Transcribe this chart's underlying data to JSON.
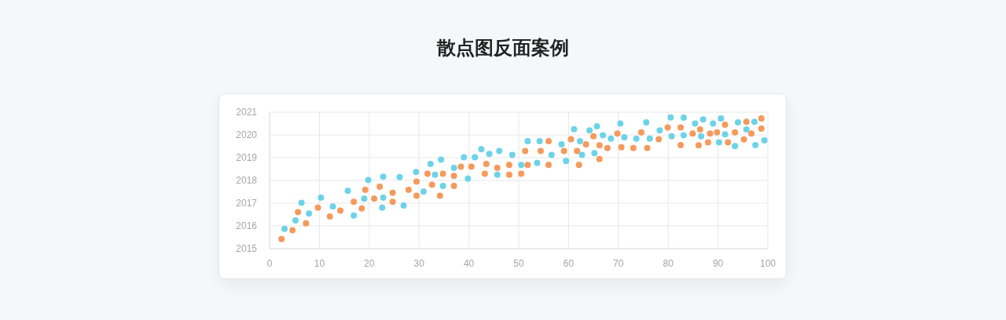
{
  "chart_data": {
    "type": "scatter",
    "title": "散点图反面案例",
    "xlim": [
      0,
      100
    ],
    "xticks": [
      0,
      10,
      20,
      30,
      40,
      50,
      60,
      70,
      80,
      90,
      100
    ],
    "ylim": [
      2015,
      2021
    ],
    "yticks": [
      2015,
      2016,
      2017,
      2018,
      2019,
      2020,
      2021
    ],
    "grid": true,
    "legend": false,
    "marker": "circle",
    "series": [
      {
        "color": "#6dd3e8",
        "x": [
          3.0,
          5.2,
          6.4,
          7.9,
          10.3,
          12.7,
          15.7,
          16.9,
          19.0,
          19.8,
          22.8,
          22.8,
          22.6,
          26.1,
          26.9,
          29.4,
          30.9,
          32.3,
          33.2,
          34.4,
          34.8,
          37.0,
          39.0,
          39.8,
          41.2,
          42.5,
          44.1,
          45.7,
          46.1,
          48.7,
          50.5,
          51.8,
          53.7,
          54.2,
          56.6,
          58.6,
          59.5,
          61.1,
          62.3,
          62.7,
          64.2,
          65.7,
          65.2,
          66.9,
          68.5,
          70.4,
          71.2,
          73.6,
          75.6,
          76.3,
          78.3,
          80.5,
          80.7,
          83.1,
          83.1,
          85.4,
          86.6,
          87.0,
          89.0,
          90.2,
          90.6,
          91.4,
          93.4,
          94.0,
          95.7,
          97.3,
          97.5,
          99.3
        ],
        "values": [
          2015.87,
          2016.24,
          2017.02,
          2016.54,
          2017.24,
          2016.85,
          2017.54,
          2016.46,
          2017.2,
          2018.02,
          2018.16,
          2017.24,
          2016.8,
          2018.15,
          2016.9,
          2018.37,
          2017.51,
          2018.72,
          2018.25,
          2018.91,
          2017.76,
          2018.55,
          2019.02,
          2018.08,
          2019.02,
          2019.37,
          2019.16,
          2018.25,
          2019.29,
          2019.12,
          2018.68,
          2019.72,
          2018.77,
          2019.72,
          2019.12,
          2019.59,
          2018.85,
          2020.25,
          2019.72,
          2019.12,
          2020.2,
          2020.38,
          2019.2,
          2019.98,
          2019.84,
          2020.5,
          2019.9,
          2019.84,
          2020.55,
          2019.84,
          2020.2,
          2020.77,
          2019.94,
          2020.76,
          2019.98,
          2020.5,
          2019.94,
          2020.68,
          2020.5,
          2019.67,
          2020.72,
          2020.03,
          2019.51,
          2020.55,
          2020.24,
          2020.58,
          2019.55,
          2019.76
        ]
      },
      {
        "color": "#f59a5c",
        "x": [
          2.4,
          4.6,
          5.7,
          7.3,
          9.7,
          12.1,
          14.2,
          16.9,
          18.5,
          19.2,
          21.0,
          22.1,
          24.7,
          24.7,
          27.9,
          29.5,
          29.5,
          31.7,
          32.6,
          34.2,
          34.8,
          37.0,
          37.0,
          38.4,
          40.5,
          43.2,
          43.5,
          45.7,
          48.1,
          48.1,
          50.5,
          51.3,
          51.8,
          54.4,
          56.0,
          56.0,
          59.1,
          60.5,
          61.7,
          62.1,
          63.5,
          65.0,
          66.2,
          66.2,
          67.8,
          69.8,
          70.6,
          73.0,
          74.6,
          75.8,
          78.1,
          79.9,
          82.5,
          82.5,
          84.9,
          86.1,
          86.4,
          88.0,
          88.4,
          89.8,
          91.4,
          92.0,
          93.4,
          95.2,
          95.7,
          96.7,
          98.7,
          98.7
        ],
        "values": [
          2015.42,
          2015.81,
          2016.6,
          2016.11,
          2016.8,
          2016.41,
          2016.67,
          2017.06,
          2016.77,
          2017.59,
          2017.2,
          2017.72,
          2017.46,
          2017.06,
          2017.59,
          2017.95,
          2017.33,
          2018.29,
          2017.81,
          2017.33,
          2018.29,
          2018.2,
          2017.76,
          2018.6,
          2018.6,
          2018.29,
          2018.72,
          2018.55,
          2018.68,
          2018.25,
          2018.29,
          2019.29,
          2018.68,
          2019.29,
          2019.72,
          2018.68,
          2019.29,
          2019.81,
          2019.29,
          2018.68,
          2019.59,
          2019.94,
          2019.54,
          2018.94,
          2019.42,
          2020.06,
          2019.46,
          2019.42,
          2020.11,
          2019.42,
          2019.81,
          2020.33,
          2020.33,
          2019.55,
          2020.06,
          2019.54,
          2020.24,
          2019.67,
          2020.06,
          2020.11,
          2020.45,
          2019.67,
          2020.11,
          2019.8,
          2020.58,
          2020.06,
          2020.72,
          2020.28
        ]
      }
    ]
  }
}
